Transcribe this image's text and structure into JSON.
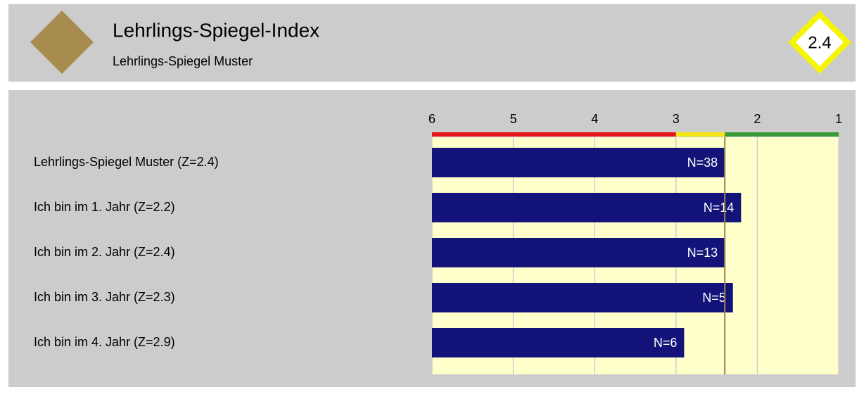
{
  "header": {
    "title": "Lehrlings-Spiegel-Index",
    "subtitle": "Lehrlings-Spiegel Muster",
    "index": 2.4
  },
  "chart_data": {
    "type": "bar",
    "orientation": "horizontal",
    "categories": [
      "Lehrlings-Spiegel Muster (Z=2.4)",
      "Ich bin im 1. Jahr  (Z=2.2)",
      "Ich bin im 2. Jahr  (Z=2.4)",
      "Ich bin im 3. Jahr  (Z=2.3)",
      "Ich bin im 4. Jahr (Z=2.9)"
    ],
    "values": [
      2.4,
      2.2,
      2.4,
      2.3,
      2.9
    ],
    "value_labels": [
      "N=38",
      "N=14",
      "N=13",
      "N=5",
      "N=6"
    ],
    "color": "#13137a",
    "xlim": [
      6,
      1
    ],
    "xticks": [
      6,
      5,
      4,
      3,
      2,
      1
    ],
    "grid": true,
    "reference": 2.4,
    "zones": [
      {
        "from": 6,
        "to": 3,
        "color": "#e8141c"
      },
      {
        "from": 3,
        "to": 2.4,
        "color": "#f5e614"
      },
      {
        "from": 2.4,
        "to": 1,
        "color": "#3a9a3a"
      }
    ]
  }
}
